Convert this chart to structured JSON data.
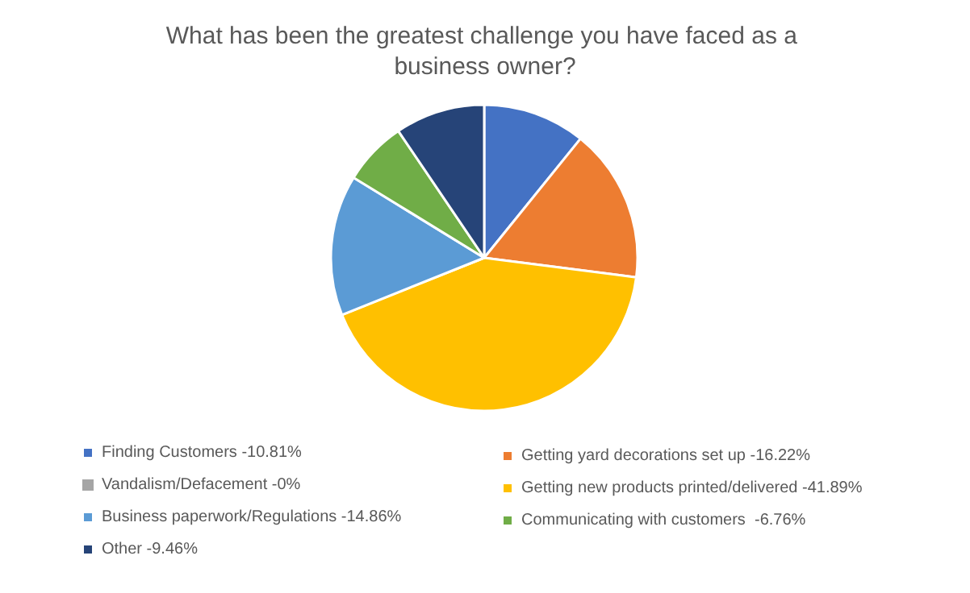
{
  "chart_data": {
    "type": "pie",
    "title": "What has been the greatest challenge you have faced as a business owner?",
    "categories": [
      "Finding Customers -10.81%",
      "Getting yard decorations set up -16.22%",
      "Vandalism/Defacement -0%",
      "Getting new products printed/delivered -41.89%",
      "Business paperwork/Regulations -14.86%",
      "Communicating with customers  -6.76%",
      "Other -9.46%"
    ],
    "values": [
      10.81,
      16.22,
      0,
      41.89,
      14.86,
      6.76,
      9.46
    ],
    "colors": [
      "#4472c4",
      "#ed7d31",
      "#a5a5a5",
      "#ffc000",
      "#5b9bd5",
      "#70ad47",
      "#264478"
    ],
    "legend": "bottom"
  }
}
